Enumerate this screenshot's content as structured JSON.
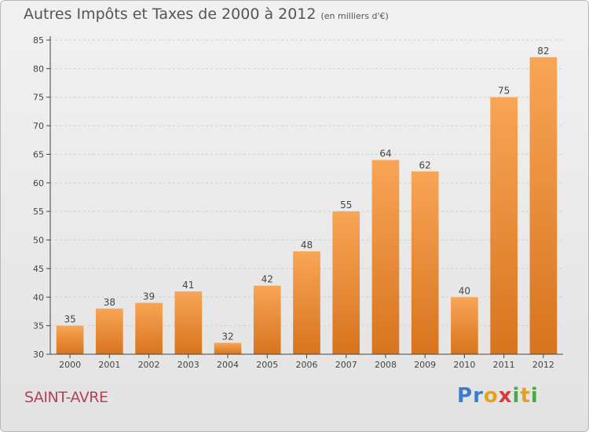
{
  "title": "Autres Impôts et Taxes de 2000 à 2012",
  "title_unit": "(en milliers d'€)",
  "commune": "SAINT-AVRE",
  "logo": {
    "letters": [
      "P",
      "r",
      "o",
      "x",
      "i",
      "t",
      "i"
    ],
    "colors": [
      "#3a7fc6",
      "#3a7fc6",
      "#e8a020",
      "#d83a3a",
      "#4aa84a",
      "#e8a020",
      "#4aa84a"
    ]
  },
  "colors": {
    "bar_top": "#f8a556",
    "bar_bottom": "#d8741e",
    "axis": "#444444",
    "grid": "#cfcfcf"
  },
  "chart_data": {
    "type": "bar",
    "categories": [
      "2000",
      "2001",
      "2002",
      "2003",
      "2004",
      "2005",
      "2006",
      "2007",
      "2008",
      "2009",
      "2010",
      "2011",
      "2012"
    ],
    "values": [
      35,
      38,
      39,
      41,
      32,
      42,
      48,
      55,
      64,
      62,
      40,
      75,
      82
    ],
    "ylim": [
      30,
      85
    ],
    "yticks": [
      30,
      35,
      40,
      45,
      50,
      55,
      60,
      65,
      70,
      75,
      80,
      85
    ],
    "grid": true
  }
}
